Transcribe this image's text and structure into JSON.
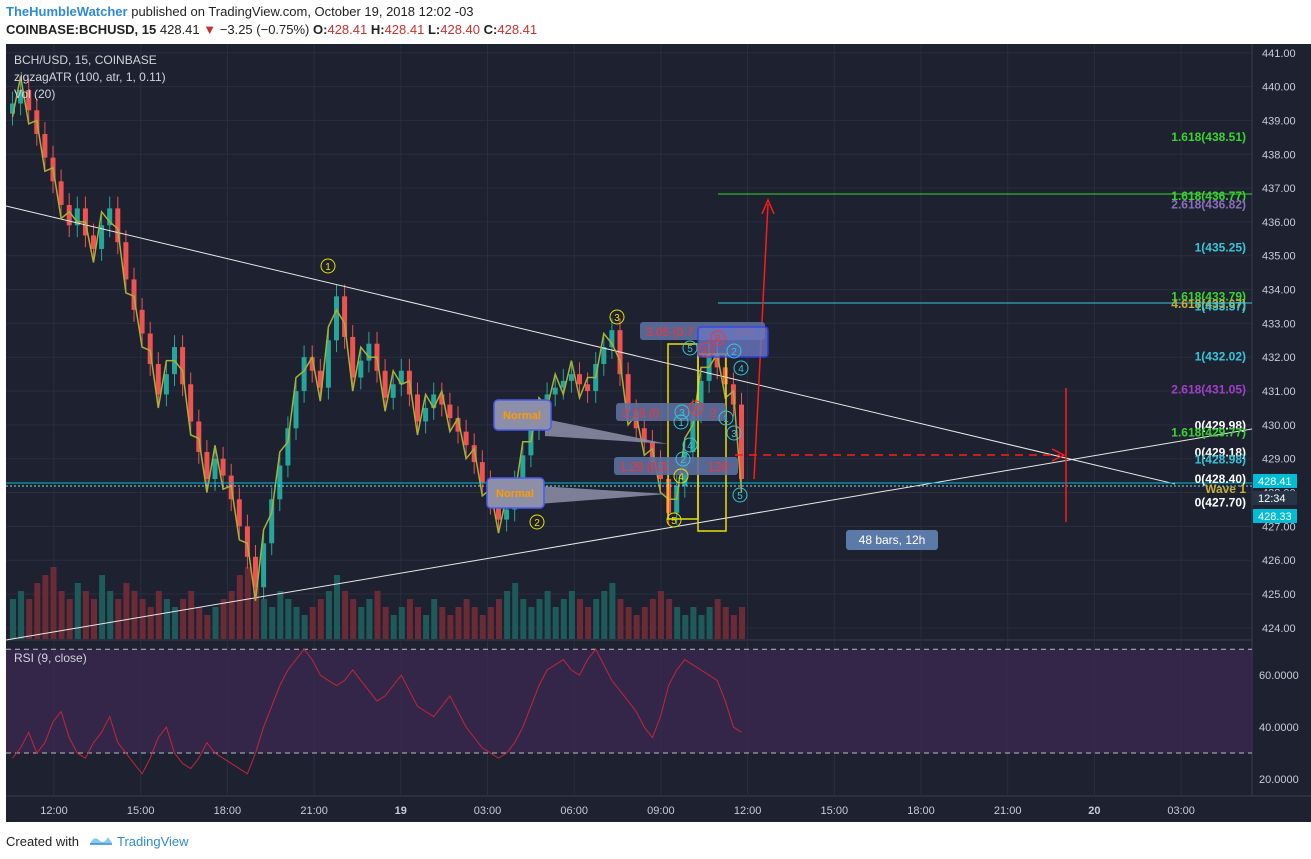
{
  "header": {
    "author": "TheHumbleWatcher",
    "published": "published on TradingView.com, October 19, 2018 12:02 -03",
    "symbol_line": "COINBASE:BCHUSD, 15",
    "last": "428.41",
    "change": "−3.25 (−0.75%)",
    "o_label": "O:",
    "o": "428.41",
    "h_label": "H:",
    "h": "428.41",
    "l_label": "L:",
    "l": "428.40",
    "c_label": "C:",
    "c": "428.41"
  },
  "footer": {
    "created_with": "Created with",
    "brand": "TradingView"
  },
  "legend": {
    "symbol": "BCH/USD, 15, COINBASE",
    "zigzag": "zigzagATR (100, atr, 1, 0.11)",
    "vol": "Vol (20)",
    "rsi": "RSI (9, close)"
  },
  "colors": {
    "background": "#1e2130",
    "grid": "#2a2e3d",
    "up": "#26a69a",
    "down": "#ef5350",
    "zigzag": "#a8b03a",
    "rsi": "#c0263a",
    "rsi_band": "#3a2850",
    "price_line": "#00bcd4"
  },
  "chart_data": {
    "type": "candlestick",
    "price_axis": {
      "range": [
        423.7,
        441.2
      ],
      "ticks": [
        424,
        425,
        426,
        427,
        428,
        429,
        430,
        431,
        432,
        433,
        434,
        435,
        436,
        437,
        438,
        439,
        440,
        441
      ]
    },
    "time_axis": {
      "ticks": [
        "12:00",
        "15:00",
        "18:00",
        "21:00",
        "19",
        "03:00",
        "06:00",
        "09:00",
        "12:00",
        "15:00",
        "18:00",
        "21:00",
        "20",
        "03:00"
      ]
    },
    "current_price": "428.41",
    "countdown": "12:34",
    "second_price": "428.33",
    "close_series": [
      439.5,
      439.9,
      439.3,
      438.6,
      437.9,
      437.2,
      436.5,
      435.9,
      436.4,
      435.6,
      435.2,
      435.9,
      436.4,
      435.4,
      434.3,
      433.4,
      432.7,
      431.8,
      430.9,
      431.5,
      432.3,
      431.2,
      430.1,
      429.2,
      428.4,
      429.0,
      428.5,
      427.8,
      427.0,
      426.1,
      425.2,
      426.5,
      427.8,
      428.8,
      429.9,
      431.0,
      432.0,
      431.6,
      431.1,
      432.5,
      433.8,
      432.6,
      431.4,
      431.9,
      432.4,
      431.6,
      430.8,
      431.2,
      431.6,
      430.9,
      430.1,
      430.5,
      430.9,
      430.6,
      430.2,
      429.8,
      429.4,
      428.9,
      428.3,
      427.7,
      427.2,
      427.5,
      428.3,
      429.1,
      429.9,
      430.4,
      430.9,
      431.1,
      431.3,
      431.5,
      431.2,
      431.0,
      431.8,
      432.3,
      432.8,
      431.5,
      430.4,
      429.9,
      429.5,
      428.9,
      428.4,
      427.4,
      428.2,
      429.2,
      430.4,
      431.3,
      432.1,
      431.7,
      431.2,
      430.6,
      428.4
    ],
    "volume_series": [
      5,
      6,
      5,
      7,
      8,
      9,
      6,
      5,
      7,
      6,
      5,
      8,
      6,
      5,
      7,
      6,
      5,
      4,
      6,
      5,
      4,
      5,
      6,
      4,
      3,
      4,
      5,
      6,
      8,
      9,
      7,
      5,
      4,
      6,
      5,
      4,
      3,
      4,
      5,
      6,
      8,
      6,
      5,
      4,
      5,
      6,
      4,
      3,
      4,
      5,
      4,
      3,
      5,
      4,
      3,
      4,
      5,
      4,
      3,
      4,
      5,
      6,
      7,
      5,
      4,
      5,
      6,
      4,
      5,
      6,
      5,
      4,
      5,
      6,
      7,
      5,
      4,
      3,
      4,
      5,
      6,
      5,
      4,
      3,
      4,
      3,
      4,
      5,
      4,
      3,
      4
    ],
    "rsi": {
      "range": [
        15,
        72
      ],
      "levels": [
        30,
        70
      ],
      "ticks": [
        "20.0000",
        "40.0000",
        "60.0000"
      ],
      "values": [
        28,
        32,
        38,
        30,
        34,
        42,
        46,
        36,
        30,
        28,
        34,
        38,
        44,
        34,
        30,
        26,
        22,
        28,
        36,
        40,
        30,
        26,
        24,
        28,
        34,
        30,
        28,
        26,
        24,
        22,
        30,
        40,
        48,
        56,
        62,
        66,
        70,
        66,
        60,
        58,
        56,
        58,
        62,
        58,
        54,
        50,
        52,
        56,
        60,
        54,
        48,
        46,
        44,
        48,
        52,
        46,
        40,
        36,
        32,
        30,
        28,
        30,
        34,
        40,
        48,
        56,
        62,
        64,
        66,
        62,
        60,
        66,
        70,
        64,
        58,
        54,
        50,
        46,
        40,
        36,
        44,
        56,
        62,
        66,
        64,
        62,
        60,
        58,
        50,
        40,
        38
      ]
    },
    "fib_labels": [
      {
        "text": "1.618(438.51)",
        "price": 438.51,
        "color": "#38d430"
      },
      {
        "text": "1.618(436.77)",
        "price": 436.77,
        "color": "#38d430"
      },
      {
        "text": "2.618(436.82)",
        "price": 436.52,
        "color": "#8a6fb8"
      },
      {
        "text": "1(435.25)",
        "price": 435.25,
        "color": "#36c6d6"
      },
      {
        "text": "1.618(433.79)",
        "price": 433.79,
        "color": "#38d430"
      },
      {
        "text": "4.618(433.67)",
        "price": 433.57,
        "color": "#c8b032"
      },
      {
        "text": "1(433.57)",
        "price": 433.5,
        "color": "#36c6d6"
      },
      {
        "text": "1(432.02)",
        "price": 432.02,
        "color": "#36c6d6"
      },
      {
        "text": "2.618(431.05)",
        "price": 431.05,
        "color": "#a040c8"
      },
      {
        "text": "0(429.98)",
        "price": 429.98,
        "color": "#ffffff"
      },
      {
        "text": "1.618(429.77)",
        "price": 429.77,
        "color": "#38d430"
      },
      {
        "text": "0(429.18)",
        "price": 429.18,
        "color": "#ffffff"
      },
      {
        "text": "1(428.98)",
        "price": 428.98,
        "color": "#36c6d6"
      },
      {
        "text": "0(428.40)",
        "price": 428.4,
        "color": "#ffffff"
      },
      {
        "text": "Wave 1",
        "price": 428.1,
        "color": "#c8b032"
      },
      {
        "text": "0(427.70)",
        "price": 427.7,
        "color": "#ffffff"
      }
    ],
    "annotations": {
      "normal_1": "Normal",
      "normal_2": "Normal",
      "fib_a": "3.05 (0.7",
      "fib_a_tail": "305",
      "fib_b": "2.19 (0.",
      "fib_b_tail": "2",
      "fib_c": "1.28 (0.3",
      "fib_c_tail": "128",
      "bars_label": "48 bars, 12h",
      "wave_marks": [
        "1",
        "2",
        "3",
        "4",
        "5",
        "1",
        "2",
        "3",
        "4",
        "5",
        "B",
        "2",
        "4",
        "1",
        "3",
        "5",
        "①",
        "②"
      ]
    }
  }
}
